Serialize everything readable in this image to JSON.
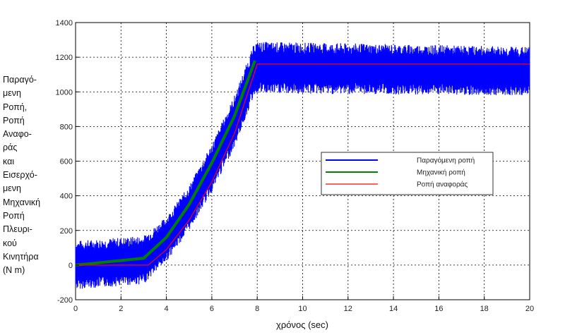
{
  "chart_data": {
    "type": "line",
    "xlabel": "χρόνος (sec)",
    "ylabel_lines": [
      "Παραγό-",
      "μενη",
      "Ροπή,",
      "Ροπή",
      "Αναφο-",
      "ράς",
      "και",
      "Εισερχό-",
      "μενη",
      "Μηχανική",
      "Ροπή",
      "Πλευρι-",
      "κού",
      "Κινητήρα",
      "(N m)"
    ],
    "xlim": [
      0,
      20
    ],
    "ylim": [
      -200,
      1400
    ],
    "x_ticks": [
      "0",
      "2",
      "4",
      "6",
      "8",
      "10",
      "12",
      "14",
      "16",
      "18",
      "20"
    ],
    "y_ticks": [
      "-200",
      "0",
      "200",
      "400",
      "600",
      "800",
      "1000",
      "1200",
      "1400"
    ],
    "grid": true,
    "legend_position": "center-right",
    "series": [
      {
        "name": "Παραγόμενη ροπή",
        "color": "#0000ff",
        "x": [
          0,
          3,
          4,
          5,
          6,
          7,
          7.9,
          20
        ],
        "y": [
          0,
          30,
          150,
          330,
          560,
          830,
          1140,
          1120
        ],
        "band_halfwidth": [
          140,
          140,
          130,
          130,
          140,
          150,
          150,
          140
        ]
      },
      {
        "name": "Μηχανική ροπή",
        "color": "#008000",
        "x": [
          0,
          3,
          4,
          5,
          6,
          7,
          7.9
        ],
        "y": [
          0,
          40,
          160,
          350,
          590,
          860,
          1180
        ]
      },
      {
        "name": "Ροπή αναφοράς",
        "color": "#ff0000",
        "x": [
          0,
          3.2,
          4,
          5,
          6,
          7,
          8,
          20
        ],
        "y": [
          0,
          0,
          90,
          260,
          480,
          760,
          1160,
          1160
        ]
      }
    ]
  }
}
